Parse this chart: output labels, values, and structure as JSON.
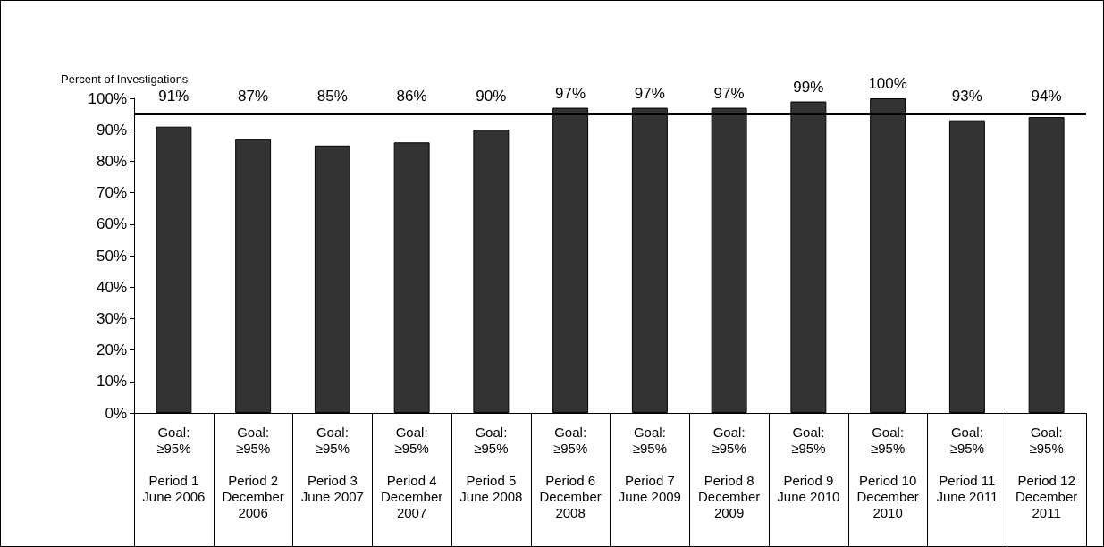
{
  "chart_data": {
    "type": "bar",
    "ylabel": "Percent of Investigations",
    "categories": [
      "Goal:\n≥95%\n\nPeriod 1\nJune 2006",
      "Goal:\n≥95%\n\nPeriod 2\nDecember\n2006",
      "Goal:\n≥95%\n\nPeriod 3\nJune 2007",
      "Goal:\n≥95%\n\nPeriod 4\nDecember\n2007",
      "Goal:\n≥95%\n\nPeriod 5\nJune 2008",
      "Goal:\n≥95%\n\nPeriod 6\nDecember\n2008",
      "Goal:\n≥95%\n\nPeriod 7\nJune 2009",
      "Goal:\n≥95%\n\nPeriod 8\nDecember\n2009",
      "Goal:\n≥95%\n\nPeriod 9\nJune 2010",
      "Goal:\n≥95%\n\nPeriod 10\nDecember\n2010",
      "Goal:\n≥95%\n\nPeriod 11\nJune 2011",
      "Goal:\n≥95%\n\nPeriod 12\nDecember\n2011"
    ],
    "values": [
      91,
      87,
      85,
      86,
      90,
      97,
      97,
      97,
      99,
      100,
      93,
      94
    ],
    "value_labels": [
      "91%",
      "87%",
      "85%",
      "86%",
      "90%",
      "97%",
      "97%",
      "97%",
      "99%",
      "100%",
      "93%",
      "94%"
    ],
    "color": "#333333",
    "ylim": [
      0,
      100
    ],
    "yticks": [
      {
        "value": 0,
        "label": "0%"
      },
      {
        "value": 10,
        "label": "10%"
      },
      {
        "value": 20,
        "label": "20%"
      },
      {
        "value": 30,
        "label": "30%"
      },
      {
        "value": 40,
        "label": "40%"
      },
      {
        "value": 50,
        "label": "50%"
      },
      {
        "value": 60,
        "label": "60%"
      },
      {
        "value": 70,
        "label": "70%"
      },
      {
        "value": 80,
        "label": "80%"
      },
      {
        "value": 90,
        "label": "90%"
      },
      {
        "value": 100,
        "label": "100%"
      }
    ],
    "ref_lines": [
      {
        "axis": "y",
        "value": 95,
        "color": "#000000"
      }
    ],
    "grid": false
  }
}
